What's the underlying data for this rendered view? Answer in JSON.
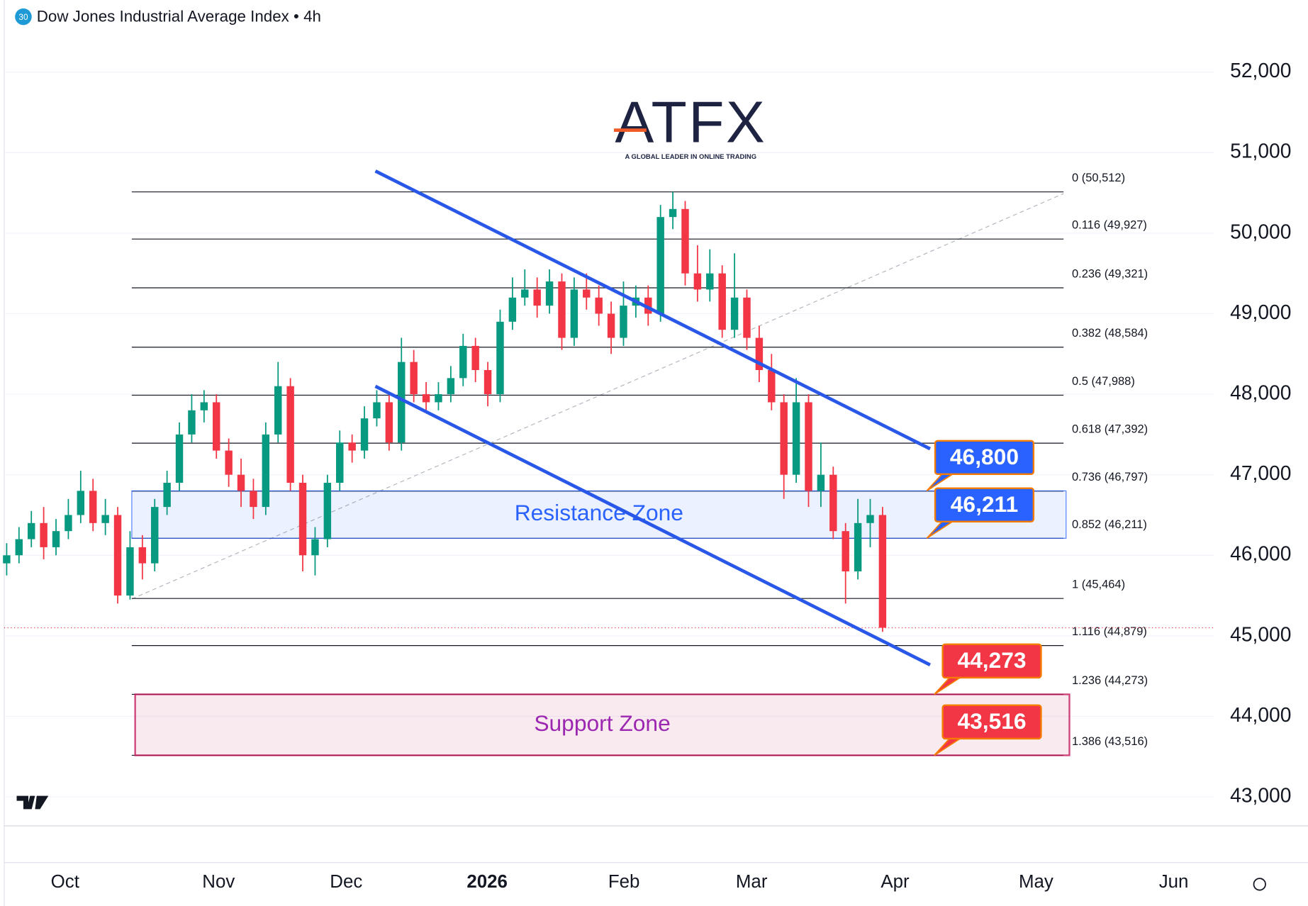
{
  "chart_data": {
    "type": "candlestick",
    "title": "Dow Jones Industrial Average Index • 4h",
    "badge": "30",
    "logo": {
      "brand": "ATFX",
      "tagline": "A GLOBAL LEADER IN ONLINE TRADING"
    },
    "up_color": "#089981",
    "down_color": "#f23645",
    "open": [
      45900,
      46000,
      46200,
      46400,
      46100,
      46300,
      46500,
      46800,
      46400,
      46500,
      45500,
      46100,
      45900,
      46600,
      46900,
      47500,
      47800,
      47900,
      47300,
      47000,
      46800,
      46600,
      47500,
      48100,
      46900,
      46000,
      46200,
      46900,
      47400,
      47300,
      47700,
      47900,
      47400,
      48400,
      48000,
      47900,
      48000,
      48200,
      48600,
      48300,
      48000,
      48900,
      49200,
      49300,
      49100,
      49400,
      48700,
      49300,
      49200,
      49000,
      48700,
      49100,
      49200,
      49000,
      50200,
      50300,
      49500,
      49300,
      49500,
      48800,
      49200,
      48700,
      48300,
      47900,
      47000,
      47900,
      46800,
      47000,
      46300,
      45800,
      46400,
      46500
    ],
    "high": [
      46150,
      46350,
      46550,
      46600,
      46450,
      46700,
      47050,
      46950,
      46700,
      46600,
      46300,
      46250,
      46700,
      47050,
      47650,
      48000,
      48050,
      48000,
      47450,
      47200,
      46950,
      47650,
      48400,
      48200,
      47000,
      46350,
      47000,
      47550,
      47500,
      47850,
      48050,
      48000,
      48700,
      48550,
      48150,
      48150,
      48350,
      48750,
      48700,
      48400,
      49050,
      49450,
      49550,
      49450,
      49550,
      49500,
      49450,
      49500,
      49350,
      49150,
      49400,
      49350,
      49350,
      50350,
      50512,
      50400,
      49850,
      49800,
      49600,
      49750,
      49300,
      48850,
      48500,
      48000,
      48200,
      48000,
      47400,
      47100,
      46400,
      46700,
      46700,
      46600
    ],
    "low": [
      45750,
      45900,
      46100,
      45950,
      46000,
      46200,
      46400,
      46300,
      46250,
      45400,
      45450,
      45700,
      45800,
      46500,
      46800,
      47400,
      47650,
      47200,
      46850,
      46600,
      46450,
      46500,
      47400,
      46800,
      45800,
      45750,
      46100,
      46800,
      47150,
      47200,
      47600,
      47300,
      47300,
      47900,
      47800,
      47800,
      47900,
      48100,
      48150,
      47850,
      47900,
      48800,
      49100,
      48950,
      49000,
      48550,
      48600,
      49050,
      48850,
      48500,
      48600,
      48950,
      48850,
      48900,
      50050,
      49350,
      49150,
      49150,
      48700,
      48700,
      48550,
      48150,
      47800,
      46700,
      46900,
      46600,
      46600,
      46200,
      45400,
      45700,
      46100,
      45050
    ],
    "close": [
      46000,
      46200,
      46400,
      46100,
      46300,
      46500,
      46800,
      46400,
      46500,
      45500,
      46100,
      45900,
      46600,
      46900,
      47500,
      47800,
      47900,
      47300,
      47000,
      46800,
      46600,
      47500,
      48100,
      46900,
      46000,
      46200,
      46900,
      47400,
      47300,
      47700,
      47900,
      47400,
      48400,
      48000,
      47900,
      48000,
      48200,
      48600,
      48300,
      48000,
      48900,
      49200,
      49300,
      49100,
      49400,
      48700,
      49300,
      49200,
      49000,
      48700,
      49100,
      49200,
      49000,
      50200,
      50300,
      49500,
      49300,
      49500,
      48800,
      49200,
      48700,
      48300,
      47900,
      47000,
      47900,
      46800,
      47000,
      46300,
      45800,
      46400,
      46500,
      45100
    ],
    "last_price": 45100,
    "ylim": [
      42640,
      52480
    ],
    "yticks": [
      {
        "value": 43000,
        "label": "43,000"
      },
      {
        "value": 44000,
        "label": "44,000"
      },
      {
        "value": 45000,
        "label": "45,000"
      },
      {
        "value": 46000,
        "label": "46,000"
      },
      {
        "value": 47000,
        "label": "47,000"
      },
      {
        "value": 48000,
        "label": "48,000"
      },
      {
        "value": 49000,
        "label": "49,000"
      },
      {
        "value": 50000,
        "label": "50,000"
      },
      {
        "value": 51000,
        "label": "51,000"
      },
      {
        "value": 52000,
        "label": "52,000"
      }
    ],
    "xticks": [
      "Oct",
      "Nov",
      "Dec",
      "2026",
      "Feb",
      "Mar",
      "Apr",
      "May",
      "Jun"
    ],
    "fib_levels": [
      {
        "value": 50512,
        "label": "0 (50,512)"
      },
      {
        "value": 49927,
        "label": "0.116 (49,927)"
      },
      {
        "value": 49321,
        "label": "0.236 (49,321)"
      },
      {
        "value": 48584,
        "label": "0.382 (48,584)"
      },
      {
        "value": 47988,
        "label": "0.5 (47,988)"
      },
      {
        "value": 47392,
        "label": "0.618 (47,392)"
      },
      {
        "value": 46797,
        "label": "0.736 (46,797)"
      },
      {
        "value": 46211,
        "label": "0.852 (46,211)"
      },
      {
        "value": 45464,
        "label": "1 (45,464)"
      },
      {
        "value": 44879,
        "label": "1.116 (44,879)"
      },
      {
        "value": 44273,
        "label": "1.236 (44,273)"
      },
      {
        "value": 43516,
        "label": "1.386 (43,516)"
      }
    ],
    "zones": [
      {
        "name": "Resistance Zone",
        "range": [
          46211,
          46800
        ],
        "color": "#2962ff"
      },
      {
        "name": "Support Zone",
        "range": [
          43516,
          44273
        ],
        "color": "#c2185b"
      }
    ],
    "callouts": [
      {
        "value": 46800,
        "label": "46,800",
        "color": "#2962ff"
      },
      {
        "value": 46211,
        "label": "46,211",
        "color": "#2962ff"
      },
      {
        "value": 44273,
        "label": "44,273",
        "color": "#f23645"
      },
      {
        "value": 43516,
        "label": "43,516",
        "color": "#f23645"
      }
    ]
  }
}
